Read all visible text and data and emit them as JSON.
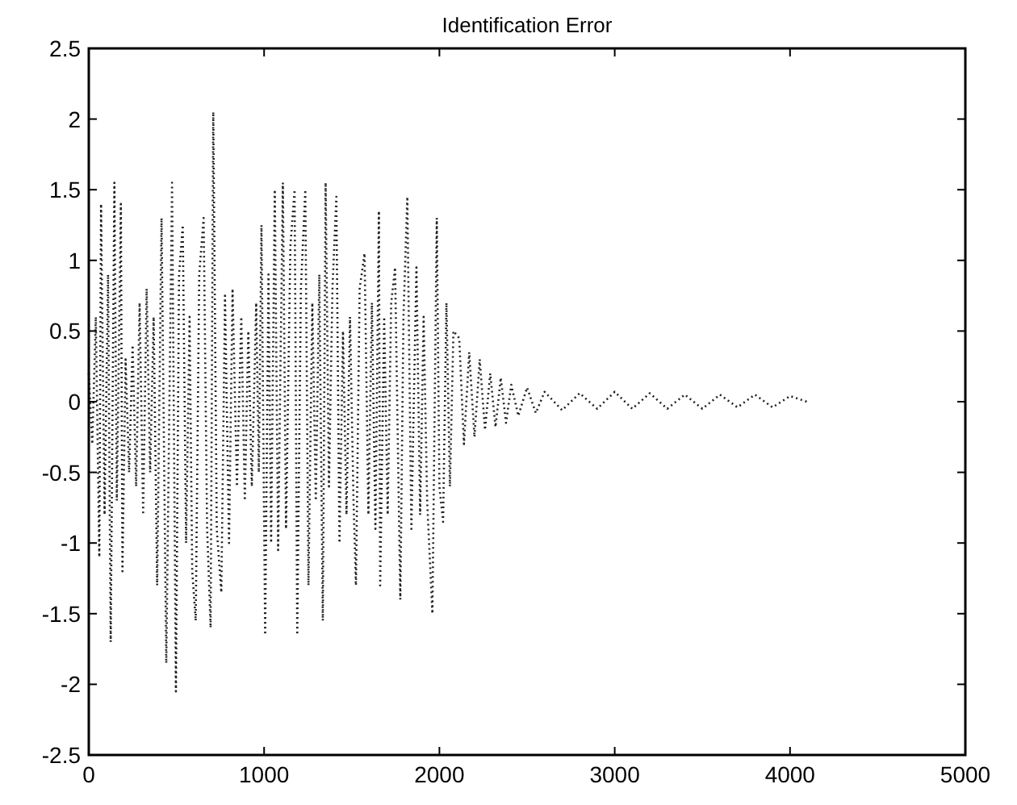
{
  "chart_data": {
    "type": "line",
    "title": "Identification Error",
    "x": [
      0,
      20,
      40,
      60,
      70,
      90,
      110,
      125,
      146,
      160,
      183,
      192,
      210,
      230,
      250,
      270,
      290,
      310,
      330,
      350,
      370,
      390,
      415,
      442,
      475,
      497,
      515,
      536,
      555,
      575,
      590,
      610,
      630,
      655,
      675,
      695,
      710,
      730,
      756,
      777,
      800,
      820,
      845,
      870,
      890,
      910,
      930,
      955,
      970,
      985,
      1006,
      1025,
      1040,
      1061,
      1080,
      1107,
      1125,
      1150,
      1174,
      1189,
      1210,
      1235,
      1253,
      1275,
      1295,
      1315,
      1335,
      1351,
      1370,
      1390,
      1412,
      1430,
      1450,
      1470,
      1490,
      1510,
      1524,
      1545,
      1573,
      1595,
      1615,
      1635,
      1655,
      1662,
      1685,
      1705,
      1725,
      1747,
      1777,
      1795,
      1817,
      1840,
      1869,
      1890,
      1910,
      1930,
      1960,
      1985,
      2000,
      2021,
      2040,
      2060,
      2080,
      2113,
      2140,
      2170,
      2200,
      2230,
      2260,
      2290,
      2320,
      2350,
      2380,
      2410,
      2450,
      2500,
      2550,
      2600,
      2700,
      2800,
      2900,
      3000,
      3100,
      3200,
      3300,
      3400,
      3500,
      3600,
      3700,
      3800,
      3900,
      4000,
      4096
    ],
    "series": [
      {
        "color": "#222222",
        "values": [
          0.2,
          -0.3,
          0.6,
          -1.1,
          1.4,
          -0.8,
          0.9,
          -1.7,
          1.55,
          -0.7,
          1.4,
          -1.2,
          0.3,
          -0.5,
          0.4,
          -0.6,
          0.7,
          -0.8,
          0.8,
          -0.5,
          0.6,
          -1.3,
          1.3,
          -1.85,
          1.55,
          -2.05,
          0.9,
          1.25,
          -1.0,
          0.6,
          -1.2,
          -1.55,
          0.9,
          1.3,
          -0.9,
          -1.6,
          2.05,
          -0.9,
          -1.35,
          0.75,
          -1.0,
          0.8,
          -0.6,
          0.6,
          -0.7,
          0.5,
          -0.6,
          0.7,
          -0.5,
          1.25,
          -1.65,
          0.9,
          -1.0,
          1.5,
          -1.05,
          1.55,
          -0.9,
          1.1,
          1.5,
          -1.65,
          0.8,
          1.5,
          -1.3,
          0.7,
          -0.7,
          0.9,
          -1.55,
          1.55,
          -0.6,
          0.8,
          1.45,
          -1.0,
          0.5,
          -0.8,
          0.6,
          -0.7,
          -1.3,
          0.8,
          1.05,
          -0.8,
          0.7,
          -0.9,
          1.35,
          -1.3,
          0.6,
          -0.8,
          0.7,
          0.95,
          -1.4,
          0.6,
          1.45,
          -0.9,
          0.95,
          -0.8,
          0.6,
          -0.7,
          -1.5,
          1.3,
          -0.6,
          -0.85,
          0.7,
          -0.6,
          0.5,
          0.45,
          -0.3,
          0.35,
          -0.25,
          0.3,
          -0.2,
          0.2,
          -0.18,
          0.17,
          -0.15,
          0.12,
          -0.1,
          0.1,
          -0.08,
          0.07,
          -0.06,
          0.06,
          -0.05,
          0.07,
          -0.05,
          0.06,
          -0.05,
          0.05,
          -0.05,
          0.05,
          -0.04,
          0.05,
          -0.04,
          0.04,
          0
        ]
      }
    ],
    "xlim": [
      0,
      5000
    ],
    "xticks": [
      0,
      1000,
      2000,
      3000,
      4000,
      5000
    ],
    "ylim": [
      -2.5,
      2.5
    ],
    "yticks": [
      -2.5,
      -2,
      -1.5,
      -1,
      -0.5,
      0,
      0.5,
      1,
      1.5,
      2,
      2.5
    ],
    "line_style": "dotted"
  }
}
